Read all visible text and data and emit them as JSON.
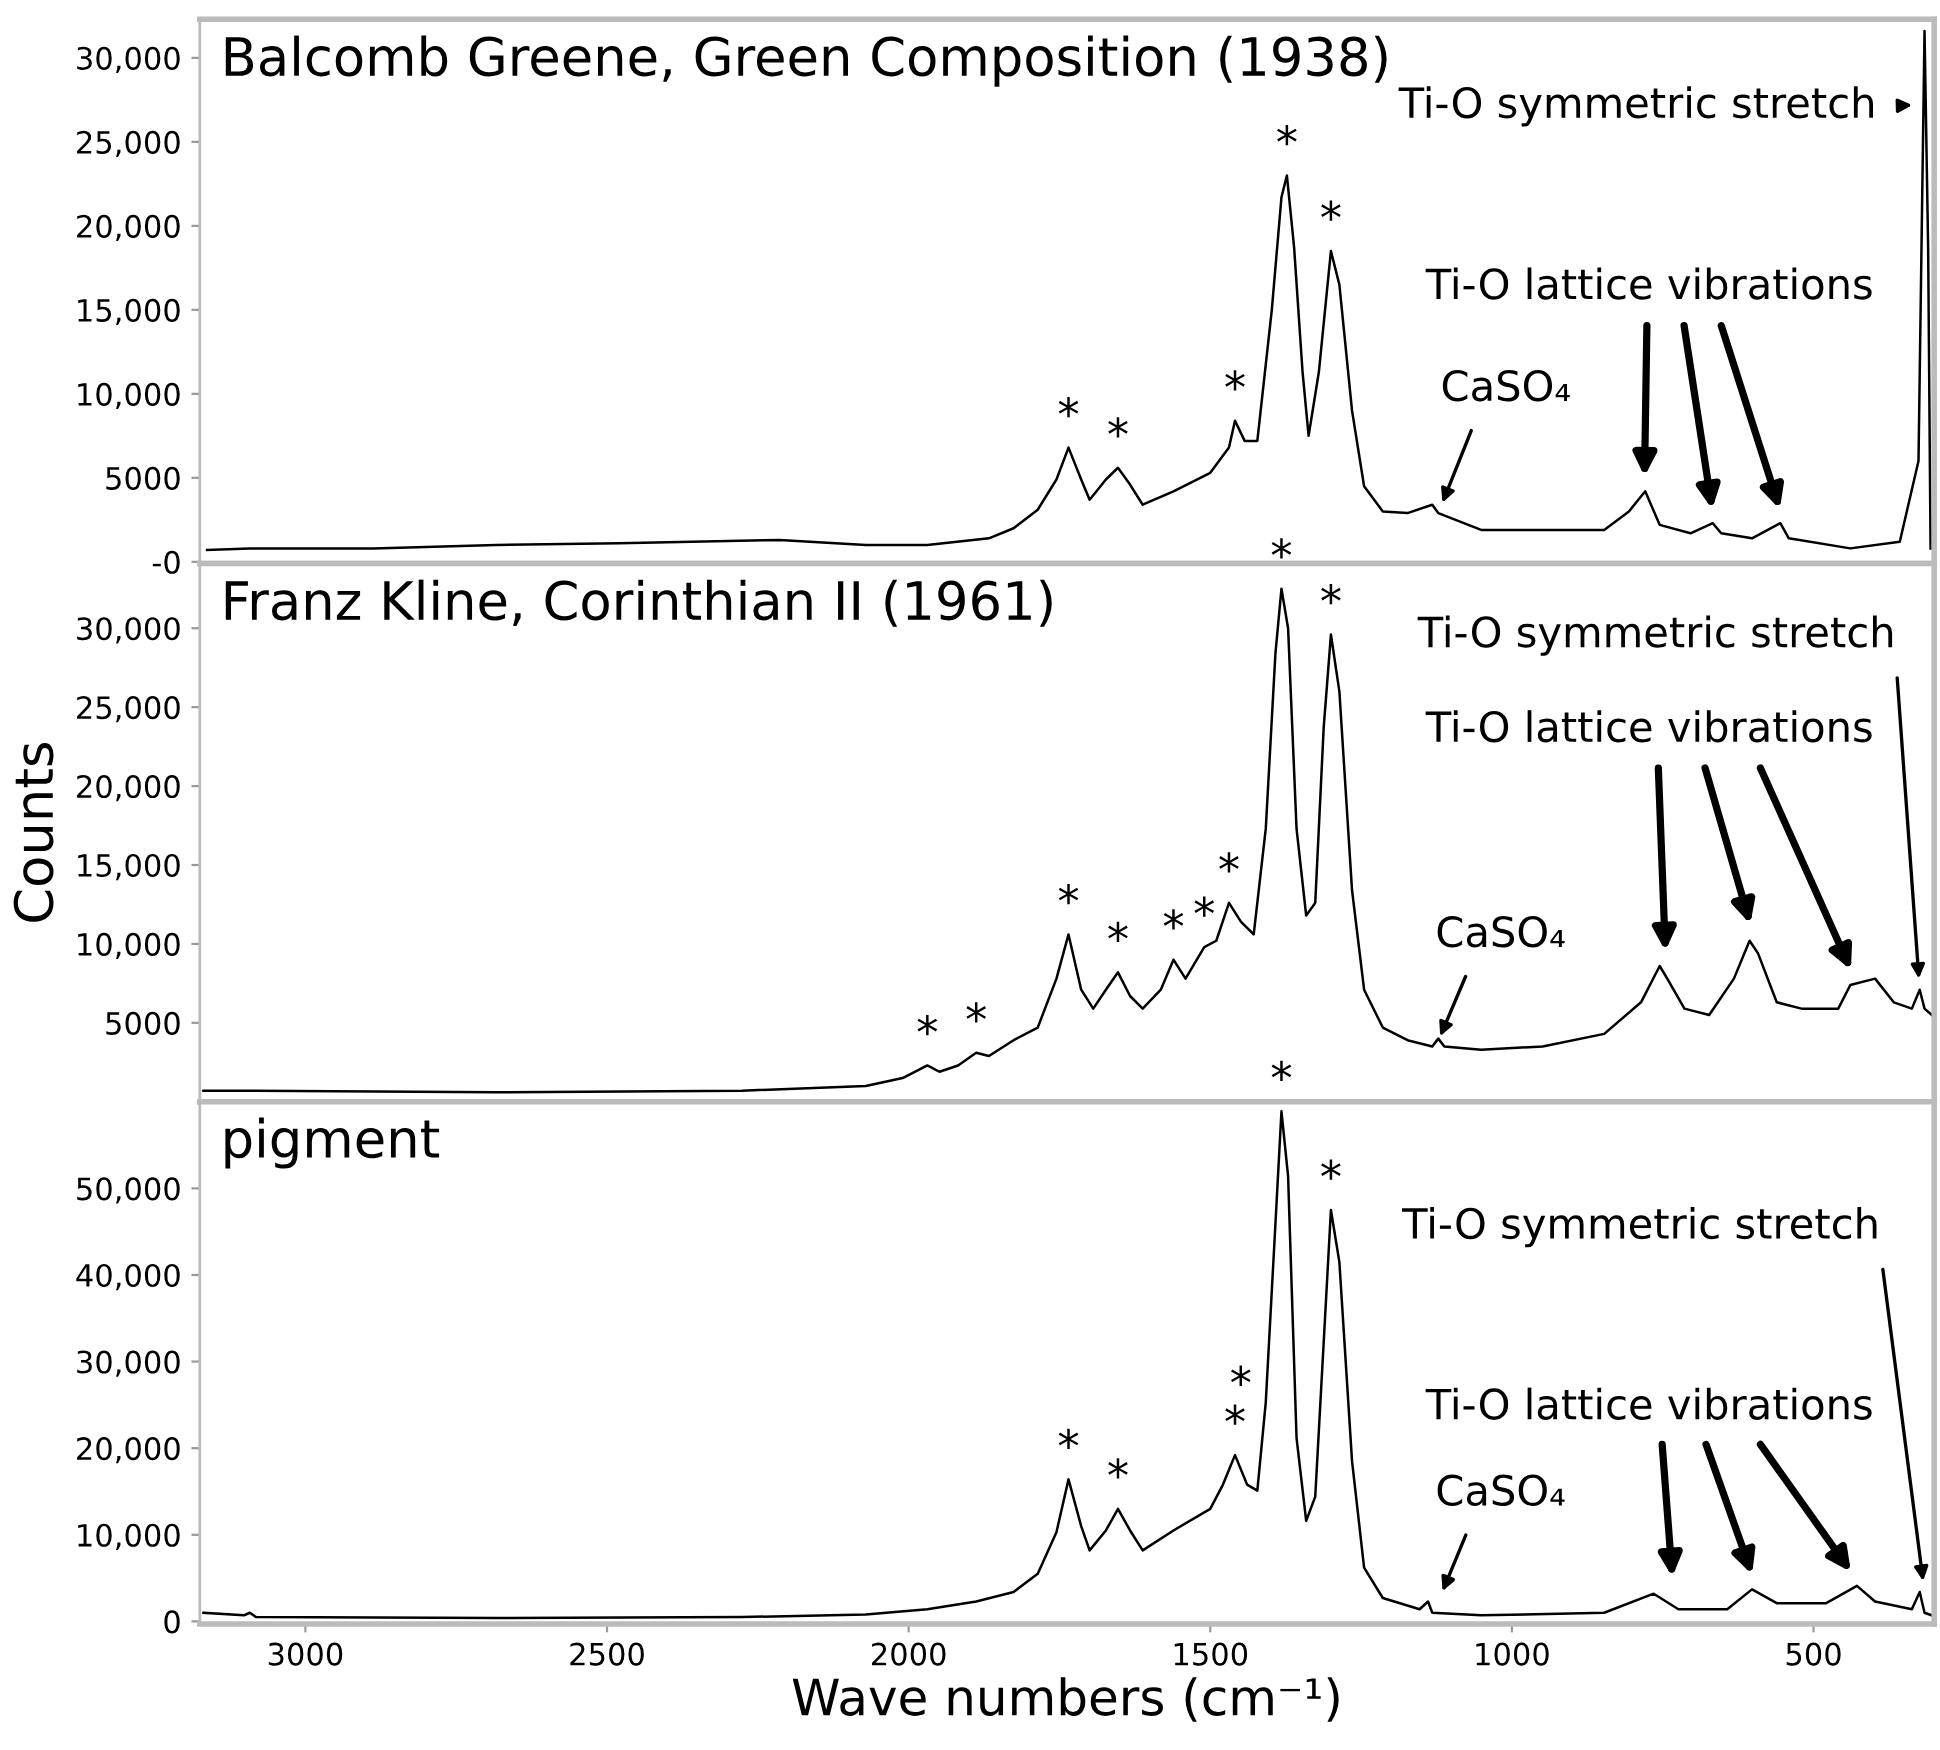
{
  "chart_data": [
    {
      "type": "line",
      "title": "Balcomb Greene, Green Composition (1938)",
      "x": [
        3163,
        3092,
        2888,
        2684,
        2480,
        2214,
        2071,
        1969,
        1867,
        1826,
        1786,
        1755,
        1735,
        1714,
        1700,
        1673,
        1653,
        1633,
        1612,
        1561,
        1500,
        1469,
        1459,
        1443,
        1422,
        1398,
        1382,
        1373,
        1361,
        1347,
        1337,
        1320,
        1300,
        1286,
        1265,
        1245,
        1214,
        1173,
        1132,
        1122,
        1051,
        847,
        806,
        779,
        755,
        704,
        667,
        653,
        602,
        555,
        541,
        439,
        357,
        326,
        316,
        310,
        306
      ],
      "series": [
        {
          "color": "#000000",
          "values": [
            700,
            800,
            800,
            1000,
            1100,
            1300,
            1000,
            1000,
            1400,
            2000,
            3100,
            4900,
            6800,
            4900,
            3700,
            4900,
            5600,
            4600,
            3400,
            4200,
            5300,
            6800,
            8400,
            7200,
            7200,
            15000,
            21700,
            23000,
            18700,
            11300,
            7500,
            11300,
            18500,
            16500,
            9000,
            4500,
            3000,
            2900,
            3400,
            2900,
            1900,
            1900,
            3000,
            4200,
            2200,
            1700,
            2300,
            1700,
            1400,
            2300,
            1400,
            800,
            1200,
            6000,
            31600,
            18700,
            800
          ]
        }
      ],
      "xlim": [
        3175,
        300
      ],
      "ylim": [
        -100,
        32300
      ],
      "yticks": [
        {
          "value": 0,
          "label": "-0"
        },
        5000,
        {
          "value": 10000,
          "label": "10,000"
        },
        {
          "value": 15000,
          "label": "15,000"
        },
        {
          "value": 20000,
          "label": "20,000"
        },
        {
          "value": 25000,
          "label": "25,000"
        },
        {
          "value": 30000,
          "label": "30,000"
        }
      ],
      "tick_labels": "y",
      "grid": false,
      "legend": false,
      "marker": "none",
      "line_style": "solid",
      "annotations": [
        {
          "text": "*",
          "x": 1735,
          "y": 6800
        },
        {
          "text": "*",
          "x": 1653,
          "y": 5600
        },
        {
          "text": "*",
          "x": 1459,
          "y": 8400
        },
        {
          "text": "*",
          "x": 1373,
          "y": 23000
        },
        {
          "text": "*",
          "x": 1300,
          "y": 18500
        },
        {
          "text": "CaSO₄",
          "x": 1122,
          "y": 2900
        },
        "Ti-O lattice vibrations",
        {
          "text": "Ti-O symmetric stretch",
          "x": 318,
          "y": 27200
        }
      ]
    },
    {
      "type": "line",
      "title": "Franz Kline, Corinthian II (1961)",
      "ylabel": "Counts",
      "x": [
        3169,
        3092,
        2684,
        2276,
        2071,
        2010,
        1969,
        1949,
        1918,
        1888,
        1867,
        1826,
        1786,
        1755,
        1735,
        1714,
        1694,
        1673,
        1653,
        1633,
        1612,
        1582,
        1561,
        1541,
        1510,
        1490,
        1469,
        1449,
        1428,
        1408,
        1392,
        1382,
        1371,
        1357,
        1341,
        1326,
        1312,
        1300,
        1286,
        1265,
        1245,
        1214,
        1173,
        1132,
        1122,
        1112,
        1051,
        949,
        847,
        786,
        755,
        741,
        714,
        673,
        632,
        606,
        592,
        561,
        520,
        459,
        439,
        398,
        367,
        337,
        324,
        316,
        304
      ],
      "series": [
        {
          "color": "#000000",
          "values": [
            700,
            700,
            600,
            700,
            1000,
            1500,
            2300,
            1900,
            2300,
            3100,
            2900,
            3900,
            4700,
            7800,
            10600,
            7100,
            5900,
            7100,
            8200,
            6700,
            5900,
            7100,
            9000,
            7800,
            9800,
            10200,
            12600,
            11400,
            10600,
            17300,
            28400,
            32500,
            30000,
            17300,
            11800,
            12600,
            23700,
            29600,
            26000,
            13400,
            7100,
            4700,
            3900,
            3500,
            4000,
            3500,
            3300,
            3500,
            4300,
            6300,
            8600,
            7700,
            5900,
            5500,
            7800,
            10200,
            9400,
            6300,
            5900,
            5900,
            7400,
            7800,
            6300,
            5900,
            7100,
            5900,
            5500
          ]
        }
      ],
      "xlim": [
        3175,
        300
      ],
      "ylim": [
        0,
        34100
      ],
      "yticks": [
        5000,
        {
          "value": 10000,
          "label": "10,000"
        },
        {
          "value": 15000,
          "label": "15,000"
        },
        {
          "value": 20000,
          "label": "20,000"
        },
        {
          "value": 25000,
          "label": "25,000"
        },
        {
          "value": 30000,
          "label": "30,000"
        }
      ],
      "tick_labels": "y",
      "grid": false,
      "legend": false,
      "marker": "none",
      "line_style": "solid",
      "annotations": [
        {
          "text": "*",
          "x": 1969,
          "y": 2300
        },
        {
          "text": "*",
          "x": 1888,
          "y": 3100
        },
        {
          "text": "*",
          "x": 1735,
          "y": 10600
        },
        {
          "text": "*",
          "x": 1653,
          "y": 8200
        },
        {
          "text": "*",
          "x": 1561,
          "y": 9000
        },
        {
          "text": "*",
          "x": 1510,
          "y": 9800
        },
        {
          "text": "*",
          "x": 1469,
          "y": 12600
        },
        {
          "text": "*",
          "x": 1382,
          "y": 32500
        },
        {
          "text": "*",
          "x": 1300,
          "y": 29600
        },
        {
          "text": "CaSO₄",
          "x": 1126,
          "y": 3500
        },
        "Ti-O lattice vibrations",
        {
          "text": "Ti-O symmetric stretch",
          "x": 324,
          "y": 7100
        }
      ]
    },
    {
      "type": "line",
      "title": "pigment",
      "xlabel": "Wave numbers (cm⁻¹)",
      "x": [
        3169,
        3102,
        3092,
        3082,
        2684,
        2276,
        2071,
        1969,
        1888,
        1826,
        1786,
        1755,
        1735,
        1714,
        1700,
        1673,
        1653,
        1633,
        1612,
        1561,
        1500,
        1479,
        1459,
        1439,
        1422,
        1408,
        1392,
        1382,
        1371,
        1357,
        1341,
        1326,
        1312,
        1300,
        1286,
        1265,
        1245,
        1214,
        1153,
        1139,
        1132,
        1051,
        847,
        765,
        724,
        643,
        602,
        561,
        479,
        428,
        398,
        337,
        324,
        316,
        304
      ],
      "series": [
        {
          "color": "#000000",
          "values": [
            1000,
            700,
            1000,
            500,
            400,
            500,
            800,
            1400,
            2300,
            3400,
            5500,
            10300,
            16400,
            11000,
            8200,
            10500,
            13000,
            10500,
            8200,
            10500,
            13000,
            15800,
            19200,
            15800,
            15100,
            25300,
            45900,
            58900,
            51400,
            21200,
            11600,
            14400,
            32200,
            47500,
            41500,
            18500,
            6200,
            2700,
            1400,
            2300,
            1000,
            700,
            1000,
            3200,
            1400,
            1400,
            3700,
            2100,
            2100,
            4100,
            2300,
            1400,
            3400,
            1000,
            700
          ]
        }
      ],
      "xlim": [
        3175,
        300
      ],
      "ylim": [
        -300,
        60000
      ],
      "xticks": [
        500,
        1000,
        1500,
        2000,
        2500,
        3000
      ],
      "yticks": [
        0,
        {
          "value": 10000,
          "label": "10,000"
        },
        {
          "value": 20000,
          "label": "20,000"
        },
        {
          "value": 30000,
          "label": "30,000"
        },
        {
          "value": 40000,
          "label": "40,000"
        },
        {
          "value": 50000,
          "label": "50,000"
        }
      ],
      "grid": false,
      "legend": false,
      "marker": "none",
      "line_style": "solid",
      "annotations": [
        {
          "text": "*",
          "x": 1735,
          "y": 16400
        },
        {
          "text": "*",
          "x": 1653,
          "y": 13000
        },
        {
          "text": "*",
          "x": 1459,
          "y": 19200
        },
        {
          "text": "*",
          "x": 1408,
          "y": 25300
        },
        {
          "text": "*",
          "x": 1382,
          "y": 58900
        },
        {
          "text": "*",
          "x": 1300,
          "y": 47500
        },
        {
          "text": "CaSO₄",
          "x": 1122,
          "y": 2300
        },
        "Ti-O lattice vibrations",
        {
          "text": "Ti-O symmetric stretch",
          "x": 316,
          "y": 3400
        }
      ]
    }
  ]
}
